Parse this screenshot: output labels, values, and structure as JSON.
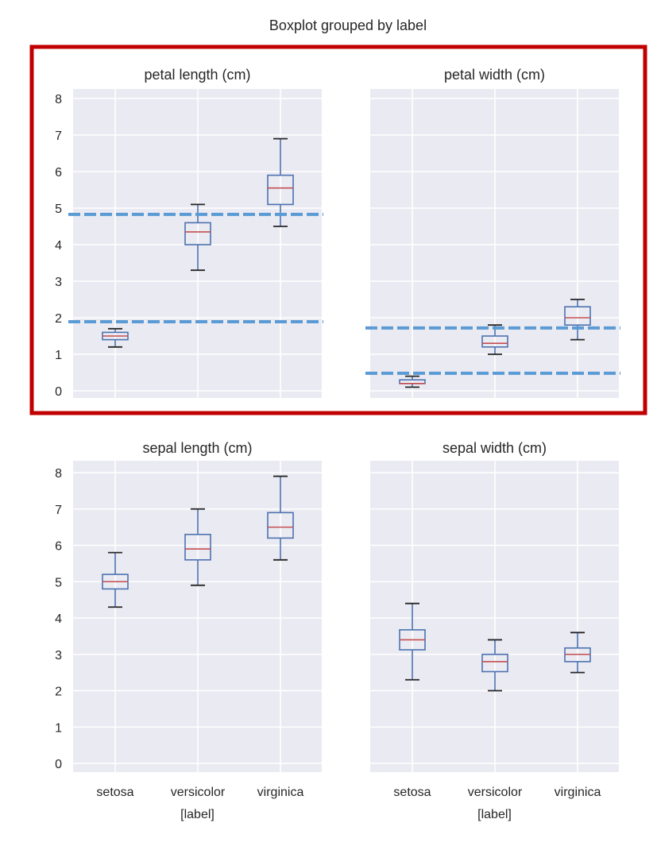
{
  "chart_data": [
    {
      "type": "box",
      "title": "petal length (cm)",
      "xlabel": "",
      "ylabel": "",
      "categories": [
        "setosa",
        "versicolor",
        "virginica"
      ],
      "yticks": [
        0,
        1,
        2,
        3,
        4,
        5,
        6,
        7,
        8
      ],
      "ylim": [
        -0.2,
        8.3
      ],
      "grid": true,
      "boxes": [
        {
          "category": "setosa",
          "whislo": 1.2,
          "q1": 1.4,
          "med": 1.5,
          "q3": 1.6,
          "whishi": 1.7
        },
        {
          "category": "versicolor",
          "whislo": 3.3,
          "q1": 4.0,
          "med": 4.35,
          "q3": 4.6,
          "whishi": 5.1
        },
        {
          "category": "virginica",
          "whislo": 4.5,
          "q1": 5.1,
          "med": 5.55,
          "q3": 5.9,
          "whishi": 6.9
        }
      ],
      "hlines": [
        {
          "y": 4.83,
          "style": "dashed",
          "color": "#5b9bd5"
        },
        {
          "y": 1.89,
          "style": "dashed",
          "color": "#5b9bd5"
        }
      ],
      "highlighted": true
    },
    {
      "type": "box",
      "title": "petal width (cm)",
      "xlabel": "",
      "ylabel": "",
      "categories": [
        "setosa",
        "versicolor",
        "virginica"
      ],
      "yticks": [
        0,
        1,
        2,
        3,
        4,
        5,
        6,
        7,
        8
      ],
      "ylim": [
        -0.2,
        8.3
      ],
      "grid": true,
      "boxes": [
        {
          "category": "setosa",
          "whislo": 0.1,
          "q1": 0.2,
          "med": 0.2,
          "q3": 0.3,
          "whishi": 0.4
        },
        {
          "category": "versicolor",
          "whislo": 1.0,
          "q1": 1.2,
          "med": 1.3,
          "q3": 1.5,
          "whishi": 1.8
        },
        {
          "category": "virginica",
          "whislo": 1.4,
          "q1": 1.8,
          "med": 2.0,
          "q3": 2.3,
          "whishi": 2.5
        }
      ],
      "hlines": [
        {
          "y": 1.72,
          "style": "dashed",
          "color": "#5b9bd5"
        },
        {
          "y": 0.48,
          "style": "dashed",
          "color": "#5b9bd5"
        }
      ],
      "highlighted": true
    },
    {
      "type": "box",
      "title": "sepal length (cm)",
      "xlabel": "[label]",
      "ylabel": "",
      "categories": [
        "setosa",
        "versicolor",
        "virginica"
      ],
      "yticks": [
        0,
        1,
        2,
        3,
        4,
        5,
        6,
        7,
        8
      ],
      "ylim": [
        -0.2,
        8.3
      ],
      "grid": true,
      "boxes": [
        {
          "category": "setosa",
          "whislo": 4.3,
          "q1": 4.8,
          "med": 5.0,
          "q3": 5.2,
          "whishi": 5.8
        },
        {
          "category": "versicolor",
          "whislo": 4.9,
          "q1": 5.6,
          "med": 5.9,
          "q3": 6.3,
          "whishi": 7.0
        },
        {
          "category": "virginica",
          "whislo": 5.6,
          "q1": 6.2,
          "med": 6.5,
          "q3": 6.9,
          "whishi": 7.9
        }
      ],
      "hlines": [],
      "highlighted": false
    },
    {
      "type": "box",
      "title": "sepal width (cm)",
      "xlabel": "[label]",
      "ylabel": "",
      "categories": [
        "setosa",
        "versicolor",
        "virginica"
      ],
      "yticks": [
        0,
        1,
        2,
        3,
        4,
        5,
        6,
        7,
        8
      ],
      "ylim": [
        -0.2,
        8.3
      ],
      "grid": true,
      "boxes": [
        {
          "category": "setosa",
          "whislo": 2.3,
          "q1": 3.125,
          "med": 3.4,
          "q3": 3.675,
          "whishi": 4.4
        },
        {
          "category": "versicolor",
          "whislo": 2.0,
          "q1": 2.525,
          "med": 2.8,
          "q3": 3.0,
          "whishi": 3.4
        },
        {
          "category": "virginica",
          "whislo": 2.5,
          "q1": 2.8,
          "med": 3.0,
          "q3": 3.175,
          "whishi": 3.6
        }
      ],
      "hlines": [],
      "highlighted": false
    }
  ],
  "figure": {
    "suptitle": "Boxplot grouped by label",
    "sharey": true,
    "colors": {
      "axes_bg": "#eaeaf2",
      "grid": "#ffffff",
      "box": "#4c72b0",
      "median": "#c44e52",
      "whisker_cap": "#262626",
      "hline": "#5b9bd5",
      "highlight_border": "#c00000",
      "text": "#262626"
    }
  },
  "cut_off_text": ""
}
